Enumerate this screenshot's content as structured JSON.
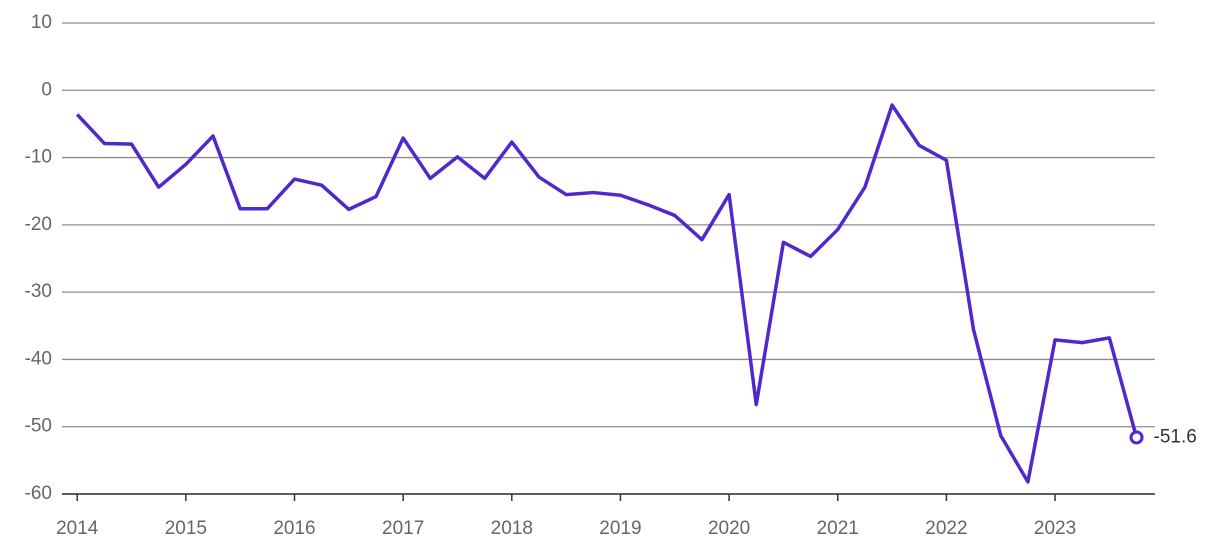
{
  "chart_data": {
    "type": "line",
    "x": [
      2014,
      2014.25,
      2014.5,
      2014.75,
      2015,
      2015.25,
      2015.5,
      2015.75,
      2016,
      2016.25,
      2016.5,
      2016.75,
      2017,
      2017.25,
      2017.5,
      2017.75,
      2018,
      2018.25,
      2018.5,
      2018.75,
      2019,
      2019.25,
      2019.5,
      2019.75,
      2020,
      2020.25,
      2020.5,
      2020.75,
      2021,
      2021.25,
      2021.5,
      2021.75,
      2022,
      2022.25,
      2022.5,
      2022.75,
      2023,
      2023.25,
      2023.5,
      2023.75
    ],
    "series": [
      {
        "color": "#5128cc",
        "values": [
          -3.6,
          -7.9,
          -8.0,
          -14.4,
          -11.0,
          -6.8,
          -17.6,
          -17.6,
          -13.2,
          -14.1,
          -17.7,
          -15.8,
          -7.1,
          -13.1,
          -9.9,
          -13.1,
          -7.7,
          -12.9,
          -15.5,
          -15.2,
          -15.6,
          -17.0,
          -18.6,
          -22.2,
          -15.5,
          -46.7,
          -22.6,
          -24.7,
          -20.7,
          -14.4,
          -2.2,
          -8.2,
          -10.4,
          -35.6,
          -51.3,
          -58.2,
          -37.1,
          -37.5,
          -36.8,
          -51.6
        ],
        "value_labels": [
          null,
          null,
          null,
          null,
          null,
          null,
          null,
          null,
          null,
          null,
          null,
          null,
          null,
          null,
          null,
          null,
          null,
          null,
          null,
          null,
          null,
          null,
          null,
          null,
          null,
          null,
          null,
          null,
          null,
          null,
          null,
          null,
          null,
          null,
          null,
          null,
          null,
          null,
          null,
          "-51.6"
        ]
      }
    ],
    "xlim": [
      2013.86,
      2023.92
    ],
    "xticks": [
      2014,
      2015,
      2016,
      2017,
      2018,
      2019,
      2020,
      2021,
      2022,
      2023
    ],
    "ylim": [
      -60,
      10
    ],
    "yticks": [
      -60,
      -50,
      -40,
      -30,
      -20,
      -10,
      0,
      10
    ],
    "grid": true
  }
}
